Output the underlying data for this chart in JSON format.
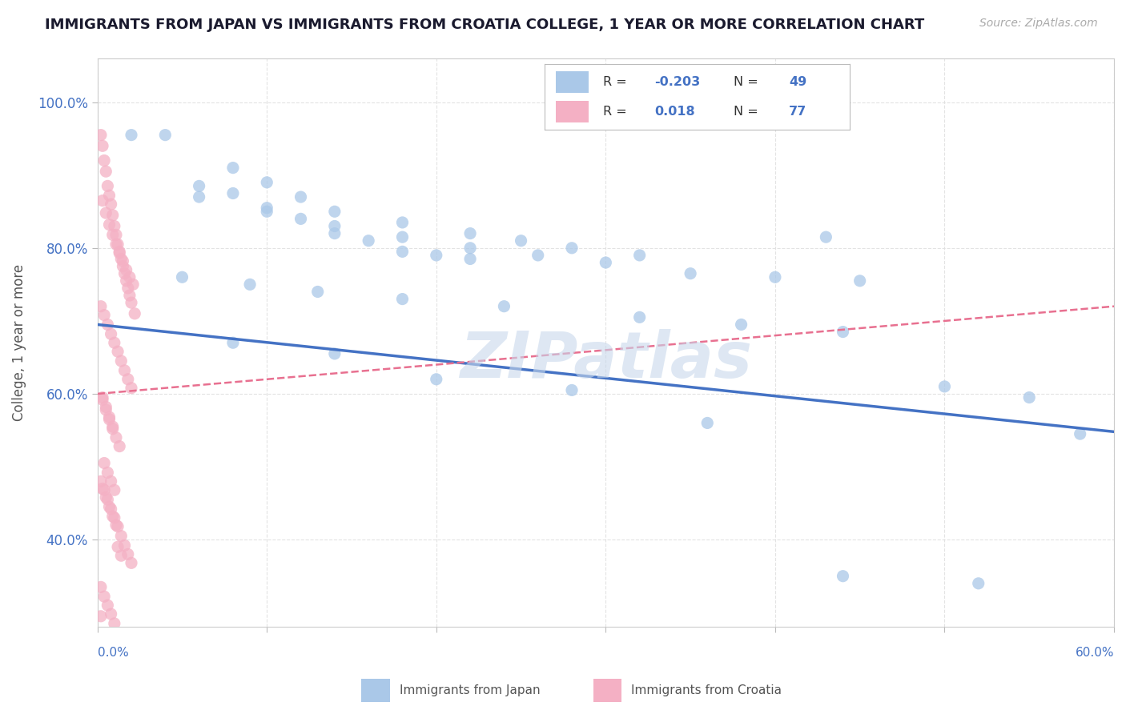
{
  "title": "IMMIGRANTS FROM JAPAN VS IMMIGRANTS FROM CROATIA COLLEGE, 1 YEAR OR MORE CORRELATION CHART",
  "source_text": "Source: ZipAtlas.com",
  "ylabel": "College, 1 year or more",
  "xmin": 0.0,
  "xmax": 0.6,
  "ymin": 0.28,
  "ymax": 1.06,
  "yticks": [
    0.4,
    0.6,
    0.8,
    1.0
  ],
  "ytick_labels": [
    "40.0%",
    "60.0%",
    "80.0%",
    "100.0%"
  ],
  "japan_color": "#aac8e8",
  "croatia_color": "#f4b0c4",
  "japan_line_color": "#4472c4",
  "croatia_line_color": "#e87090",
  "legend_japan_R": "-0.203",
  "legend_japan_N": "49",
  "legend_croatia_R": "0.018",
  "legend_croatia_N": "77",
  "japan_scatter_x": [
    0.02,
    0.06,
    0.08,
    0.1,
    0.12,
    0.14,
    0.16,
    0.18,
    0.2,
    0.22,
    0.04,
    0.08,
    0.1,
    0.12,
    0.14,
    0.18,
    0.22,
    0.25,
    0.28,
    0.32,
    0.06,
    0.1,
    0.14,
    0.18,
    0.22,
    0.26,
    0.3,
    0.35,
    0.4,
    0.45,
    0.05,
    0.09,
    0.13,
    0.18,
    0.24,
    0.32,
    0.38,
    0.44,
    0.5,
    0.55,
    0.08,
    0.14,
    0.2,
    0.28,
    0.36,
    0.44,
    0.52,
    0.58,
    0.43
  ],
  "japan_scatter_y": [
    0.955,
    0.885,
    0.875,
    0.855,
    0.84,
    0.82,
    0.81,
    0.795,
    0.79,
    0.785,
    0.955,
    0.91,
    0.89,
    0.87,
    0.85,
    0.835,
    0.82,
    0.81,
    0.8,
    0.79,
    0.87,
    0.85,
    0.83,
    0.815,
    0.8,
    0.79,
    0.78,
    0.765,
    0.76,
    0.755,
    0.76,
    0.75,
    0.74,
    0.73,
    0.72,
    0.705,
    0.695,
    0.685,
    0.61,
    0.595,
    0.67,
    0.655,
    0.62,
    0.605,
    0.56,
    0.35,
    0.34,
    0.545,
    0.815
  ],
  "croatia_scatter_x": [
    0.002,
    0.003,
    0.004,
    0.005,
    0.006,
    0.007,
    0.008,
    0.009,
    0.01,
    0.011,
    0.012,
    0.013,
    0.014,
    0.015,
    0.016,
    0.017,
    0.018,
    0.019,
    0.02,
    0.022,
    0.003,
    0.005,
    0.007,
    0.009,
    0.011,
    0.013,
    0.015,
    0.017,
    0.019,
    0.021,
    0.002,
    0.004,
    0.006,
    0.008,
    0.01,
    0.012,
    0.014,
    0.016,
    0.018,
    0.02,
    0.003,
    0.005,
    0.007,
    0.009,
    0.011,
    0.013,
    0.003,
    0.005,
    0.007,
    0.009,
    0.002,
    0.004,
    0.006,
    0.008,
    0.01,
    0.012,
    0.014,
    0.016,
    0.018,
    0.02,
    0.003,
    0.005,
    0.007,
    0.009,
    0.011,
    0.004,
    0.006,
    0.008,
    0.01,
    0.002,
    0.004,
    0.006,
    0.008,
    0.01,
    0.012,
    0.014,
    0.002
  ],
  "croatia_scatter_y": [
    0.955,
    0.94,
    0.92,
    0.905,
    0.885,
    0.872,
    0.86,
    0.845,
    0.83,
    0.818,
    0.805,
    0.795,
    0.785,
    0.775,
    0.765,
    0.755,
    0.745,
    0.735,
    0.725,
    0.71,
    0.865,
    0.848,
    0.832,
    0.818,
    0.805,
    0.793,
    0.782,
    0.77,
    0.76,
    0.75,
    0.72,
    0.708,
    0.695,
    0.682,
    0.67,
    0.658,
    0.645,
    0.632,
    0.62,
    0.608,
    0.592,
    0.578,
    0.565,
    0.552,
    0.54,
    0.528,
    0.595,
    0.582,
    0.568,
    0.555,
    0.48,
    0.468,
    0.455,
    0.442,
    0.43,
    0.418,
    0.405,
    0.392,
    0.38,
    0.368,
    0.47,
    0.458,
    0.445,
    0.432,
    0.42,
    0.505,
    0.492,
    0.48,
    0.468,
    0.335,
    0.322,
    0.31,
    0.298,
    0.285,
    0.39,
    0.378,
    0.295
  ],
  "japan_line_x0": 0.0,
  "japan_line_x1": 0.6,
  "japan_line_y0": 0.695,
  "japan_line_y1": 0.548,
  "croatia_line_x0": 0.0,
  "croatia_line_x1": 0.6,
  "croatia_line_y0": 0.6,
  "croatia_line_y1": 0.72,
  "watermark": "ZIPatlas",
  "watermark_color": "#c8d8ec",
  "background_color": "#ffffff",
  "grid_color": "#e0e0e0"
}
